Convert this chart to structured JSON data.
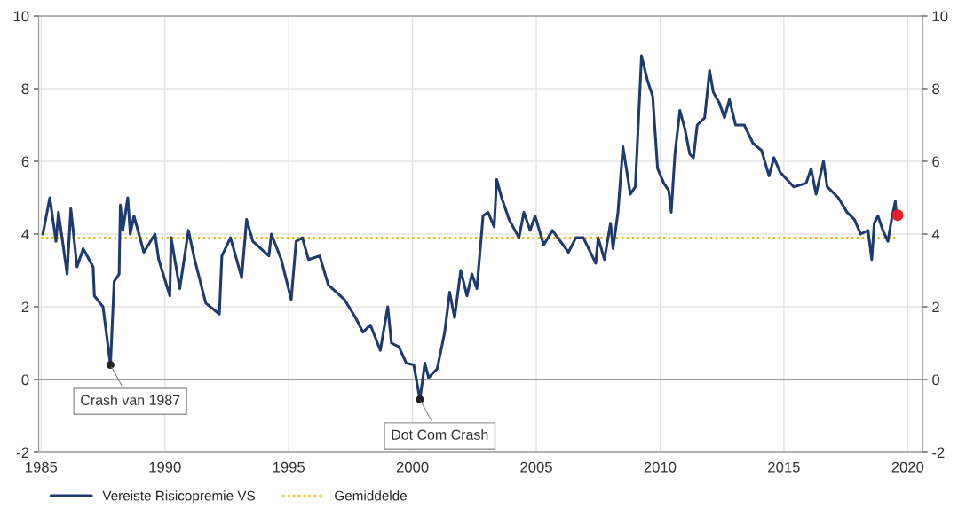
{
  "chart_data": {
    "type": "line",
    "xlim": [
      1984.9,
      2020.6
    ],
    "xticks": [
      1985,
      1990,
      1995,
      2000,
      2005,
      2010,
      2015,
      2020
    ],
    "ylim": [
      -2,
      10
    ],
    "yticks": [
      -2,
      0,
      2,
      4,
      6,
      8,
      10
    ],
    "y2lim": [
      -2,
      10
    ],
    "y2ticks": [
      -2,
      0,
      2,
      4,
      6,
      8,
      10
    ],
    "grid": true,
    "legend": "bottom left",
    "ref_lines": [
      {
        "axis": "y",
        "value": 0,
        "color": "#808080"
      }
    ],
    "annotations": [
      {
        "text": "Crash van 1987",
        "x": 1987.8,
        "y": 0.4
      },
      {
        "text": "Dot Com Crash",
        "x": 2000.3,
        "y": -0.55
      }
    ],
    "series": [
      {
        "name": "Vereiste Risicopremie VS",
        "color": "#1f3a6e",
        "line_style": "solid",
        "x": [
          1985.07,
          1985.35,
          1985.6,
          1985.7,
          1986.05,
          1986.2,
          1986.45,
          1986.7,
          1987.1,
          1987.15,
          1987.5,
          1987.8,
          1987.95,
          1988.15,
          1988.2,
          1988.3,
          1988.5,
          1988.6,
          1988.75,
          1989.15,
          1989.6,
          1989.75,
          1990.2,
          1990.25,
          1990.6,
          1990.95,
          1991.2,
          1991.65,
          1992.2,
          1992.3,
          1992.65,
          1993.1,
          1993.3,
          1993.55,
          1994.2,
          1994.3,
          1994.7,
          1995.1,
          1995.3,
          1995.55,
          1995.8,
          1996.25,
          1996.6,
          1997.25,
          1997.7,
          1998.0,
          1998.3,
          1998.7,
          1999.0,
          1999.15,
          1999.45,
          1999.75,
          2000.05,
          2000.3,
          2000.5,
          2000.65,
          2001.0,
          2001.3,
          2001.5,
          2001.7,
          2001.95,
          2002.2,
          2002.4,
          2002.6,
          2002.85,
          2003.05,
          2003.3,
          2003.4,
          2003.6,
          2003.9,
          2004.3,
          2004.5,
          2004.75,
          2004.95,
          2005.3,
          2005.65,
          2006.3,
          2006.6,
          2006.9,
          2007.4,
          2007.5,
          2007.75,
          2008.0,
          2008.1,
          2008.3,
          2008.5,
          2008.8,
          2009.0,
          2009.25,
          2009.5,
          2009.7,
          2009.9,
          2010.15,
          2010.35,
          2010.45,
          2010.6,
          2010.8,
          2011.0,
          2011.2,
          2011.35,
          2011.5,
          2011.8,
          2012.0,
          2012.15,
          2012.4,
          2012.6,
          2012.8,
          2013.05,
          2013.4,
          2013.75,
          2014.1,
          2014.4,
          2014.6,
          2014.85,
          2015.4,
          2015.9,
          2016.1,
          2016.3,
          2016.6,
          2016.75,
          2017.2,
          2017.55,
          2017.85,
          2018.1,
          2018.4,
          2018.55,
          2018.65,
          2018.8,
          2019.0,
          2019.2,
          2019.35,
          2019.5,
          2019.55
        ],
        "values": [
          4.0,
          5.0,
          3.8,
          4.6,
          2.9,
          4.7,
          3.1,
          3.6,
          3.1,
          2.3,
          2.0,
          0.4,
          2.7,
          2.9,
          4.8,
          4.1,
          5.0,
          4.0,
          4.5,
          3.5,
          4.0,
          3.3,
          2.3,
          3.9,
          2.5,
          4.1,
          3.3,
          2.1,
          1.8,
          3.4,
          3.9,
          2.8,
          4.4,
          3.8,
          3.4,
          4.0,
          3.3,
          2.2,
          3.8,
          3.9,
          3.3,
          3.4,
          2.6,
          2.2,
          1.7,
          1.3,
          1.5,
          0.8,
          2.0,
          1.0,
          0.9,
          0.45,
          0.4,
          -0.55,
          0.45,
          0.05,
          0.3,
          1.3,
          2.4,
          1.7,
          3.0,
          2.3,
          2.9,
          2.5,
          4.5,
          4.6,
          4.2,
          5.5,
          5.0,
          4.4,
          3.9,
          4.6,
          4.1,
          4.5,
          3.7,
          4.1,
          3.5,
          3.9,
          3.9,
          3.2,
          3.9,
          3.3,
          4.3,
          3.6,
          4.6,
          6.4,
          5.1,
          5.3,
          8.9,
          8.2,
          7.8,
          5.8,
          5.4,
          5.2,
          4.6,
          6.2,
          7.4,
          6.9,
          6.2,
          6.1,
          7.0,
          7.2,
          8.5,
          7.9,
          7.6,
          7.2,
          7.7,
          7.0,
          7.0,
          6.5,
          6.3,
          5.6,
          6.1,
          5.7,
          5.3,
          5.4,
          5.8,
          5.1,
          6.0,
          5.3,
          5.0,
          4.6,
          4.4,
          4.0,
          4.1,
          3.3,
          4.3,
          4.5,
          4.1,
          3.8,
          4.4,
          4.9,
          4.5
        ]
      },
      {
        "name": "Gemiddelde",
        "color": "#f0b400",
        "line_style": "dotted",
        "x": [
          1985.0,
          2019.6
        ],
        "values": [
          3.9,
          3.9
        ]
      },
      {
        "color": "#e8202a",
        "type": "scatter",
        "marker": "circle",
        "x": [
          2019.6
        ],
        "values": [
          4.52
        ]
      }
    ]
  }
}
